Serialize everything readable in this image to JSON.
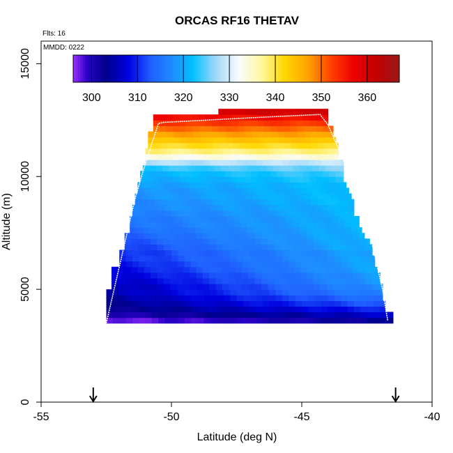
{
  "chart_data": {
    "type": "heatmap",
    "title": "ORCAS RF16 THETAV",
    "flights_note": "Flts: 16",
    "date_note": "MMDD: 0222",
    "xlabel": "Latitude (deg N)",
    "ylabel": "Altitude (m)",
    "xlim": [
      -55,
      -40
    ],
    "ylim": [
      0,
      16000
    ],
    "x_ticks": [
      -55,
      -50,
      -45,
      -40
    ],
    "y_ticks": [
      0,
      5000,
      10000,
      15000
    ],
    "grid": false,
    "colorbar": {
      "placement": "top, inside plot",
      "range": [
        296,
        367
      ],
      "ticks": [
        300,
        310,
        320,
        330,
        340,
        350,
        360
      ],
      "colormap": [
        {
          "v": 296,
          "c": "#9b30ff"
        },
        {
          "v": 299,
          "c": "#2b00c8"
        },
        {
          "v": 303,
          "c": "#00008b"
        },
        {
          "v": 308,
          "c": "#0000e0"
        },
        {
          "v": 313,
          "c": "#2060ff"
        },
        {
          "v": 318,
          "c": "#1e90ff"
        },
        {
          "v": 322,
          "c": "#00bfff"
        },
        {
          "v": 327,
          "c": "#a0d8f8"
        },
        {
          "v": 332,
          "c": "#f8fcff"
        },
        {
          "v": 337,
          "c": "#fff8a0"
        },
        {
          "v": 342,
          "c": "#ffd700"
        },
        {
          "v": 347,
          "c": "#ffa500"
        },
        {
          "v": 352,
          "c": "#ff4500"
        },
        {
          "v": 357,
          "c": "#ee0000"
        },
        {
          "v": 362,
          "c": "#c00000"
        },
        {
          "v": 367,
          "c": "#9b1818"
        }
      ]
    },
    "field": {
      "altitude_levels_m": [
        3500,
        3750,
        4000,
        4250,
        4500,
        4750,
        5000,
        5250,
        5500,
        5750,
        6000,
        6250,
        6500,
        6750,
        7000,
        7250,
        7500,
        7750,
        8000,
        8250,
        8500,
        8750,
        9000,
        9250,
        9500,
        9750,
        10000,
        10250,
        10500,
        10750,
        11000,
        11250,
        11500,
        11750,
        12000,
        12250,
        12500,
        12750
      ],
      "lat_extent": [
        [
          -52.5,
          -41.5
        ],
        [
          -52.5,
          -41.5
        ],
        [
          -52.5,
          -41.8
        ],
        [
          -52.5,
          -41.8
        ],
        [
          -52.5,
          -41.9
        ],
        [
          -52.5,
          -41.9
        ],
        [
          -52.3,
          -41.9
        ],
        [
          -52.3,
          -42.0
        ],
        [
          -52.3,
          -42.0
        ],
        [
          -52.3,
          -42.1
        ],
        [
          -52.0,
          -42.2
        ],
        [
          -52.0,
          -42.2
        ],
        [
          -52.0,
          -42.3
        ],
        [
          -51.8,
          -42.3
        ],
        [
          -51.8,
          -42.4
        ],
        [
          -51.8,
          -42.6
        ],
        [
          -51.6,
          -42.7
        ],
        [
          -51.6,
          -42.8
        ],
        [
          -51.6,
          -42.8
        ],
        [
          -51.5,
          -43.0
        ],
        [
          -51.5,
          -43.0
        ],
        [
          -51.4,
          -43.0
        ],
        [
          -51.4,
          -43.1
        ],
        [
          -51.3,
          -43.2
        ],
        [
          -51.3,
          -43.3
        ],
        [
          -51.2,
          -43.4
        ],
        [
          -51.2,
          -43.4
        ],
        [
          -51.1,
          -43.4
        ],
        [
          -51.0,
          -43.4
        ],
        [
          -51.0,
          -43.6
        ],
        [
          -51.0,
          -43.6
        ],
        [
          -50.9,
          -43.6
        ],
        [
          -50.9,
          -43.7
        ],
        [
          -50.9,
          -43.8
        ],
        [
          -50.7,
          -43.8
        ],
        [
          -50.7,
          -44.0
        ],
        [
          -50.7,
          -44.0
        ],
        [
          -48.2,
          -44.0
        ]
      ],
      "theta_v_south_K": [
        297,
        300,
        302,
        303,
        304,
        305,
        305,
        306,
        307,
        308,
        309,
        310,
        310,
        311,
        312,
        313,
        314,
        315,
        315,
        316,
        317,
        317,
        318,
        318,
        319,
        320,
        321,
        323,
        328,
        333,
        338,
        341,
        344,
        347,
        350,
        353,
        356,
        360
      ],
      "theta_v_north_K": [
        303,
        307,
        310,
        313,
        315,
        317,
        318,
        319,
        319,
        320,
        320,
        320,
        320,
        321,
        321,
        321,
        321,
        321,
        321,
        321,
        321,
        322,
        322,
        322,
        322,
        323,
        324,
        326,
        329,
        334,
        338,
        341,
        344,
        347,
        350,
        353,
        356,
        360
      ]
    },
    "flight_track": [
      {
        "lat": -52.5,
        "alt": 3500
      },
      {
        "lat": -52.3,
        "alt": 4500
      },
      {
        "lat": -52.0,
        "alt": 6000
      },
      {
        "lat": -51.7,
        "alt": 7500
      },
      {
        "lat": -51.4,
        "alt": 9000
      },
      {
        "lat": -51.1,
        "alt": 10200
      },
      {
        "lat": -50.8,
        "alt": 11300
      },
      {
        "lat": -50.6,
        "alt": 12000
      },
      {
        "lat": -50.5,
        "alt": 12350
      },
      {
        "lat": -50.3,
        "alt": 12400
      },
      {
        "lat": -47.0,
        "alt": 12600
      },
      {
        "lat": -44.3,
        "alt": 12750
      },
      {
        "lat": -44.0,
        "alt": 12300
      },
      {
        "lat": -43.5,
        "alt": 11000
      },
      {
        "lat": -43.0,
        "alt": 9500
      },
      {
        "lat": -42.5,
        "alt": 8000
      },
      {
        "lat": -42.2,
        "alt": 6500
      },
      {
        "lat": -41.9,
        "alt": 5000
      },
      {
        "lat": -41.7,
        "alt": 3600
      }
    ],
    "markers": [
      {
        "lat": -53.0
      },
      {
        "lat": -41.4
      }
    ]
  }
}
